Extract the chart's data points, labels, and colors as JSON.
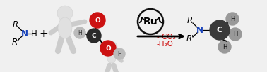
{
  "bg_color": "#f0f0f0",
  "amine_left": {
    "R_text": "R",
    "Rprime_text": "R'",
    "N_text": "N",
    "H_text": "H",
    "N_color": "#1a44bb",
    "text_color": "#000000"
  },
  "plus_text": "+",
  "catalyst_text": "Ru",
  "byproduct_line1": "- CO₂",
  "byproduct_line2": "-H₂O",
  "amine_right": {
    "R_text": "R",
    "Rprime_text": "R'",
    "N_text": "N",
    "C_text": "C",
    "N_color": "#1a44bb",
    "C_color": "#444444",
    "H_color": "#aaaaaa",
    "text_color": "#000000"
  },
  "figsize": [
    3.78,
    1.03
  ],
  "dpi": 100
}
